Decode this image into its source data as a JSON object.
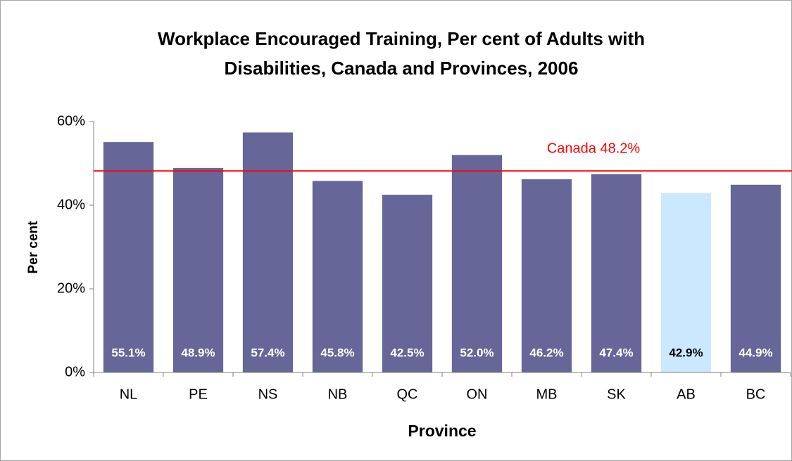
{
  "chart_data": {
    "type": "bar",
    "title": "Workplace Encouraged Training, Per cent of Adults with Disabilities, Canada and Provinces, 2006",
    "x_label": "Province",
    "y_label": "Per cent",
    "categories": [
      "NL",
      "PE",
      "NS",
      "NB",
      "QC",
      "ON",
      "MB",
      "SK",
      "AB",
      "BC"
    ],
    "values": [
      55.1,
      48.9,
      57.4,
      45.8,
      42.5,
      52.0,
      46.2,
      47.4,
      42.9,
      44.9
    ],
    "value_labels": [
      "55.1%",
      "48.9%",
      "57.4%",
      "45.8%",
      "42.5%",
      "52.0%",
      "46.2%",
      "47.4%",
      "42.9%",
      "44.9%"
    ],
    "colors": [
      "#666699",
      "#666699",
      "#666699",
      "#666699",
      "#666699",
      "#666699",
      "#666699",
      "#666699",
      "#cce8ff",
      "#666699"
    ],
    "ylim": [
      0,
      60
    ],
    "yticks": [
      {
        "value": 0,
        "label": "0%"
      },
      {
        "value": 20,
        "label": "20%"
      },
      {
        "value": 40,
        "label": "40%"
      },
      {
        "value": 60,
        "label": "60%"
      }
    ],
    "grid": false,
    "reference_line": {
      "value": 48.2,
      "label": "Canada 48.2%",
      "color": "#ff0000"
    }
  }
}
